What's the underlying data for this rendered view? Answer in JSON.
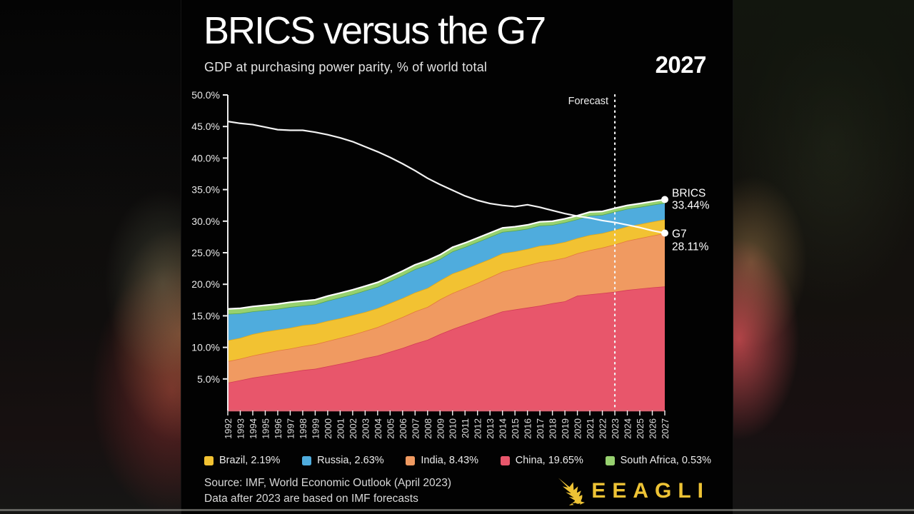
{
  "header": {
    "title": "BRICS versus the G7",
    "subtitle": "GDP at purchasing power parity, % of world total",
    "year_indicator": "2027"
  },
  "chart_data": {
    "type": "area",
    "title": "BRICS versus the G7",
    "subtitle": "GDP at purchasing power parity, % of world total",
    "x": [
      1992,
      1993,
      1994,
      1995,
      1996,
      1997,
      1998,
      1999,
      2000,
      2001,
      2002,
      2003,
      2004,
      2005,
      2006,
      2007,
      2008,
      2009,
      2010,
      2011,
      2012,
      2013,
      2014,
      2015,
      2016,
      2017,
      2018,
      2019,
      2020,
      2021,
      2022,
      2023,
      2024,
      2025,
      2026,
      2027
    ],
    "ylim": [
      0,
      50
    ],
    "yticks": [
      "5.0%",
      "10.0%",
      "15.0%",
      "20.0%",
      "25.0%",
      "30.0%",
      "35.0%",
      "40.0%",
      "45.0%",
      "50.0%"
    ],
    "grid": false,
    "legend_position": "bottom",
    "series": [
      {
        "name": "China",
        "type": "area",
        "fill": "#E8566B",
        "edge": "#D23B55",
        "values": [
          4.4,
          4.8,
          5.2,
          5.5,
          5.8,
          6.1,
          6.4,
          6.6,
          7.0,
          7.4,
          7.8,
          8.3,
          8.7,
          9.3,
          9.9,
          10.6,
          11.2,
          12.1,
          12.9,
          13.6,
          14.3,
          15.0,
          15.7,
          16.0,
          16.3,
          16.6,
          17.0,
          17.3,
          18.2,
          18.4,
          18.6,
          18.8,
          19.1,
          19.3,
          19.5,
          19.65
        ]
      },
      {
        "name": "India",
        "type": "area",
        "fill": "#F09A61",
        "edge": "#E2793C",
        "values": [
          3.4,
          3.4,
          3.5,
          3.6,
          3.7,
          3.7,
          3.8,
          3.9,
          4.0,
          4.1,
          4.2,
          4.3,
          4.5,
          4.7,
          4.9,
          5.1,
          5.2,
          5.5,
          5.7,
          5.8,
          5.9,
          6.1,
          6.3,
          6.5,
          6.7,
          6.9,
          6.8,
          6.9,
          6.7,
          7.0,
          7.2,
          7.5,
          7.8,
          8.0,
          8.2,
          8.43
        ]
      },
      {
        "name": "Brazil",
        "type": "area",
        "fill": "#F2C232",
        "edge": "#E0A81A",
        "values": [
          3.3,
          3.3,
          3.4,
          3.4,
          3.3,
          3.3,
          3.3,
          3.2,
          3.2,
          3.1,
          3.1,
          3.0,
          3.0,
          3.0,
          3.0,
          3.0,
          3.0,
          3.0,
          3.1,
          3.0,
          3.0,
          2.9,
          2.9,
          2.7,
          2.6,
          2.6,
          2.5,
          2.5,
          2.4,
          2.4,
          2.3,
          2.3,
          2.26,
          2.23,
          2.21,
          2.19
        ]
      },
      {
        "name": "Russia",
        "type": "area",
        "fill": "#4FACDD",
        "edge": "#58A84A",
        "values": [
          4.2,
          3.9,
          3.6,
          3.4,
          3.3,
          3.3,
          3.1,
          3.1,
          3.2,
          3.3,
          3.3,
          3.4,
          3.4,
          3.5,
          3.6,
          3.7,
          3.7,
          3.4,
          3.5,
          3.5,
          3.5,
          3.5,
          3.4,
          3.3,
          3.2,
          3.2,
          3.1,
          3.1,
          3.0,
          3.1,
          2.9,
          2.9,
          2.8,
          2.72,
          2.68,
          2.63
        ]
      },
      {
        "name": "South Africa",
        "type": "area",
        "fill": "#97D16F",
        "edge": "#FFFFFF",
        "values": [
          0.8,
          0.79,
          0.78,
          0.77,
          0.77,
          0.76,
          0.75,
          0.74,
          0.73,
          0.72,
          0.72,
          0.71,
          0.71,
          0.7,
          0.7,
          0.69,
          0.68,
          0.67,
          0.67,
          0.66,
          0.65,
          0.64,
          0.63,
          0.62,
          0.61,
          0.6,
          0.59,
          0.58,
          0.57,
          0.56,
          0.55,
          0.55,
          0.54,
          0.54,
          0.53,
          0.53
        ]
      },
      {
        "name": "G7",
        "type": "line",
        "color": "#FFFFFF",
        "values": [
          45.8,
          45.5,
          45.3,
          44.9,
          44.5,
          44.4,
          44.4,
          44.1,
          43.7,
          43.2,
          42.6,
          41.8,
          41.0,
          40.1,
          39.1,
          38.0,
          36.8,
          35.8,
          34.9,
          34.0,
          33.3,
          32.8,
          32.5,
          32.3,
          32.6,
          32.2,
          31.7,
          31.2,
          30.8,
          30.5,
          30.1,
          29.8,
          29.4,
          29.0,
          28.5,
          28.11
        ]
      }
    ],
    "forecast": {
      "label": "Forecast",
      "year": 2023
    },
    "annotations": [
      {
        "label": "BRICS",
        "value_label": "33.44%",
        "value": 33.43
      },
      {
        "label": "G7",
        "value_label": "28.11%",
        "value": 28.11
      }
    ],
    "axis_color": "#EDEDED",
    "baseline_color": "#DB6070"
  },
  "legend": {
    "items": [
      {
        "label": "Brazil, 2.19%",
        "color": "#F2C232"
      },
      {
        "label": "Russia, 2.63%",
        "color": "#4FACDD"
      },
      {
        "label": "India, 8.43%",
        "color": "#F09A61"
      },
      {
        "label": "China, 19.65%",
        "color": "#E8566B"
      },
      {
        "label": "South Africa, 0.53%",
        "color": "#97D16F"
      }
    ]
  },
  "footer": {
    "source_line1": "Source: IMF, World Economic Outlook (April 2023)",
    "source_line2": "Data after 2023 are based on IMF forecasts",
    "brand": "EEAGLI",
    "brand_color": "#EEC335"
  }
}
